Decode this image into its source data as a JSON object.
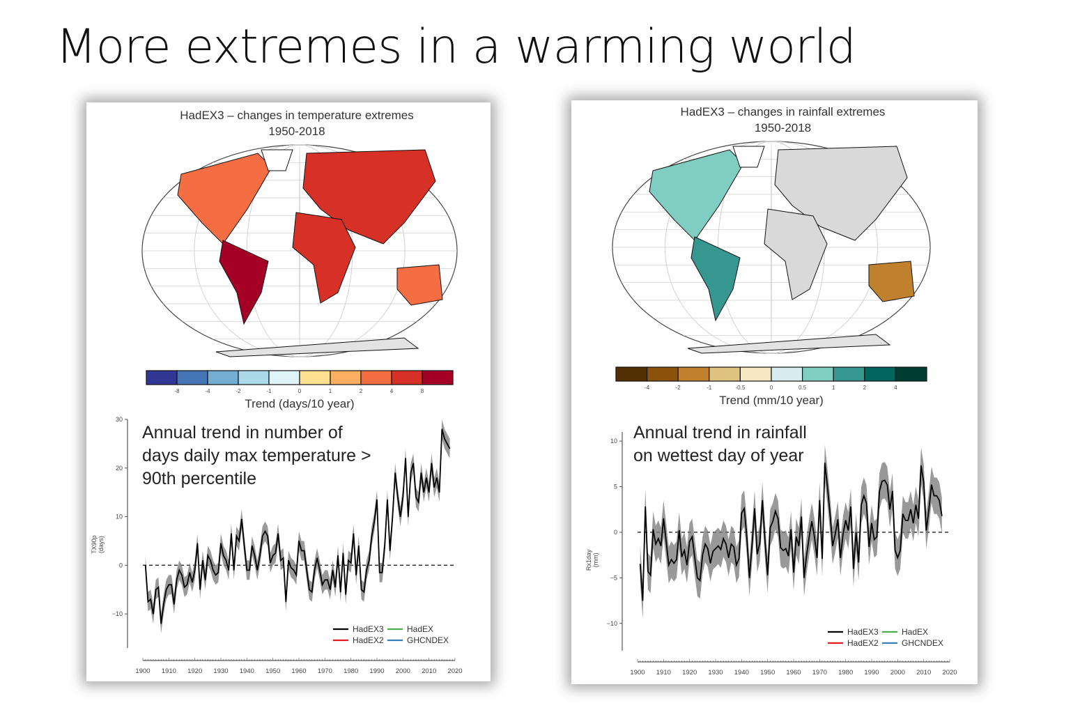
{
  "slide_title": "More extremes in a warming world",
  "chart_data": [
    {
      "type": "map",
      "title": "HadEX3 – changes in temperature extremes",
      "subtitle": "1950-2018",
      "colorbar": {
        "label": "Trend (days/10 year)",
        "ticks": [
          "-8",
          "-4",
          "-2",
          "-1",
          "0",
          "1",
          "2",
          "4",
          "8"
        ],
        "colors": [
          "#313695",
          "#4575b4",
          "#74add1",
          "#abd9e9",
          "#e0f3f8",
          "#fee090",
          "#fdae61",
          "#f46d43",
          "#d73027",
          "#a50026"
        ]
      }
    },
    {
      "type": "map",
      "title": "HadEX3 – changes in rainfall extremes",
      "subtitle": "1950-2018",
      "colorbar": {
        "label": "Trend (mm/10 year)",
        "ticks": [
          "-4",
          "-2",
          "-1",
          "-0.5",
          "0",
          "0.5",
          "1",
          "2",
          "4"
        ],
        "colors": [
          "#543005",
          "#8c510a",
          "#bf812d",
          "#dfc27d",
          "#f6e8c3",
          "#d8eeee",
          "#80cdc1",
          "#35978f",
          "#01665e",
          "#003c30"
        ]
      }
    },
    {
      "type": "line",
      "annotation": "Annual trend in number of days daily max temperature > 90th percentile",
      "annotation_lines": [
        "Annual trend in number of",
        "days daily max temperature >",
        "90th percentile"
      ],
      "ylabel": "TX90p\n(days)",
      "ylabel_lines": [
        "TX90p",
        "(days)"
      ],
      "xlim": [
        1900,
        2020
      ],
      "ylim": [
        -17,
        30
      ],
      "yticks": [
        -10,
        0,
        10,
        20,
        30
      ],
      "xticks": [
        1900,
        1910,
        1920,
        1930,
        1940,
        1950,
        1960,
        1970,
        1980,
        1990,
        2000,
        2010,
        2020
      ],
      "zero_line": "dashed",
      "legend": [
        "HadEX3",
        "HadEX2",
        "HadEX",
        "GHCNDEX"
      ],
      "legend_colors": [
        "#000000",
        "#e41a1c",
        "#4daf4a",
        "#377eb8"
      ],
      "legend_position": "bottom-right",
      "x_start": 1901,
      "series": [
        {
          "name": "HadEX3",
          "color": "#000000",
          "uncertainty": 2,
          "values": [
            0,
            -7.5,
            -7,
            -10,
            -5,
            -4.5,
            -12,
            -8,
            -5,
            -4,
            -4,
            -8,
            -3,
            -1,
            -2,
            -4.5,
            -4,
            -1.5,
            -3.5,
            -1,
            4.5,
            -5,
            1,
            -3,
            2,
            1,
            -1,
            -2,
            -1.5,
            4.5,
            2,
            1,
            -1,
            6.5,
            -1,
            6,
            5,
            9.5,
            4,
            -1,
            -1,
            4,
            2,
            -1,
            2,
            6,
            7,
            6,
            0.5,
            2,
            2.5,
            6.5,
            1,
            1.5,
            -7.5,
            1,
            -0.5,
            -1,
            -2,
            5,
            3,
            3,
            -1,
            -5,
            -5.5,
            -1,
            1.5,
            -1,
            -4,
            -3,
            -3,
            -5,
            -1,
            -4.5,
            2,
            -5.5,
            2.5,
            -6,
            1,
            0.5,
            6.5,
            -2,
            4,
            -5,
            -5.5,
            -1,
            1,
            6,
            9,
            13.5,
            -1.5,
            -1.5,
            4,
            13.5,
            3,
            10,
            19,
            14,
            10,
            14,
            22,
            10,
            19,
            21,
            14,
            13,
            19,
            15,
            18,
            15,
            21,
            16,
            18,
            15,
            28,
            26,
            25,
            24
          ]
        }
      ]
    },
    {
      "type": "line",
      "annotation": "Annual trend in rainfall on wettest day of year",
      "annotation_lines": [
        "Annual  trend in rainfall",
        "on wettest day of year"
      ],
      "ylabel": "Rx1day\n(mm)",
      "ylabel_lines": [
        "Rx1day",
        "(mm)"
      ],
      "xlim": [
        1900,
        2020
      ],
      "ylim": [
        -13,
        11
      ],
      "yticks": [
        -10,
        -5,
        0,
        5,
        10
      ],
      "xticks": [
        1900,
        1910,
        1920,
        1930,
        1940,
        1950,
        1960,
        1970,
        1980,
        1990,
        2000,
        2010,
        2020
      ],
      "zero_line": "dashed",
      "legend": [
        "HadEX3",
        "HadEX2",
        "HadEX",
        "GHCNDEX"
      ],
      "legend_colors": [
        "#000000",
        "#e41a1c",
        "#4daf4a",
        "#377eb8"
      ],
      "legend_position": "bottom-right",
      "x_start": 1901,
      "series": [
        {
          "name": "HadEX3",
          "color": "#000000",
          "uncertainty": 2,
          "values": [
            -3.5,
            -7.5,
            2.8,
            -4.3,
            -4.7,
            0.3,
            -1.3,
            -0.7,
            -1.5,
            1.5,
            -1,
            -3.6,
            -3,
            -3.4,
            -3,
            0.2,
            -2.7,
            -2,
            -3.6,
            -1,
            -0.5,
            -2.8,
            -5,
            -5.3,
            -2.5,
            -1.3,
            -1.8,
            -3.4,
            -2.1,
            -1.8,
            -1.5,
            -1.9,
            -0.7,
            -1.3,
            -2.8,
            -1.3,
            -1.6,
            -3.6,
            -2.9,
            2.1,
            2.6,
            -0.5,
            -5,
            -1.5,
            2.6,
            -2.4,
            -1.2,
            3.5,
            -1,
            -4.7,
            0.5,
            1.2,
            2.3,
            1.5,
            -1.7,
            -2,
            -1.8,
            -2.6,
            0.3,
            -4.4,
            -0.5,
            -1.5,
            1.7,
            -5,
            -2.5,
            -0.5,
            1.2,
            -0.5,
            -2.8,
            3.5,
            -2.9,
            7.6,
            5,
            2,
            -1.5,
            -0.2,
            1.4,
            -2.8,
            -0.2,
            1.3,
            0.2,
            2.8,
            -4,
            0,
            -3.3,
            3,
            4,
            3.2,
            -1.6,
            1,
            -0.8,
            -0.5,
            4.5,
            5.6,
            5.7,
            5.2,
            2.5,
            4.5,
            -2,
            -2.8,
            -2,
            2,
            1.3,
            1.3,
            2.5,
            1,
            3,
            1.5,
            7.3,
            5.5,
            0.2,
            2.5,
            5.2,
            4,
            4,
            3.5,
            1.8
          ]
        }
      ]
    }
  ]
}
